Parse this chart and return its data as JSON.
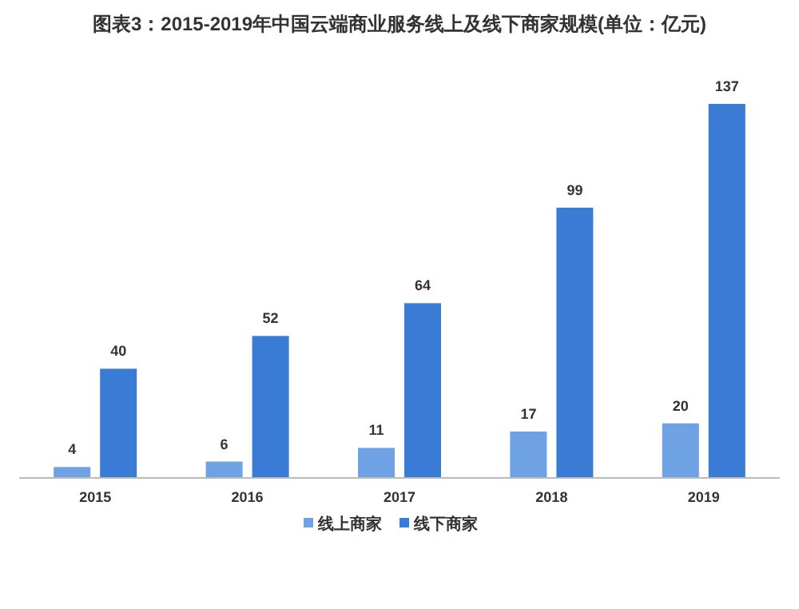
{
  "chart_data": {
    "type": "bar",
    "title": "图表3：2015-2019年中国云端商业服务线上及线下商家规模(单位：亿元)",
    "categories": [
      "2015",
      "2016",
      "2017",
      "2018",
      "2019"
    ],
    "series": [
      {
        "name": "线上商家",
        "color": "#6fa2e4",
        "values": [
          4,
          6,
          11,
          17,
          20
        ]
      },
      {
        "name": "线下商家",
        "color": "#3a7bd5",
        "values": [
          40,
          52,
          64,
          99,
          137
        ]
      }
    ],
    "data_labels": true,
    "legend": "bottom"
  }
}
